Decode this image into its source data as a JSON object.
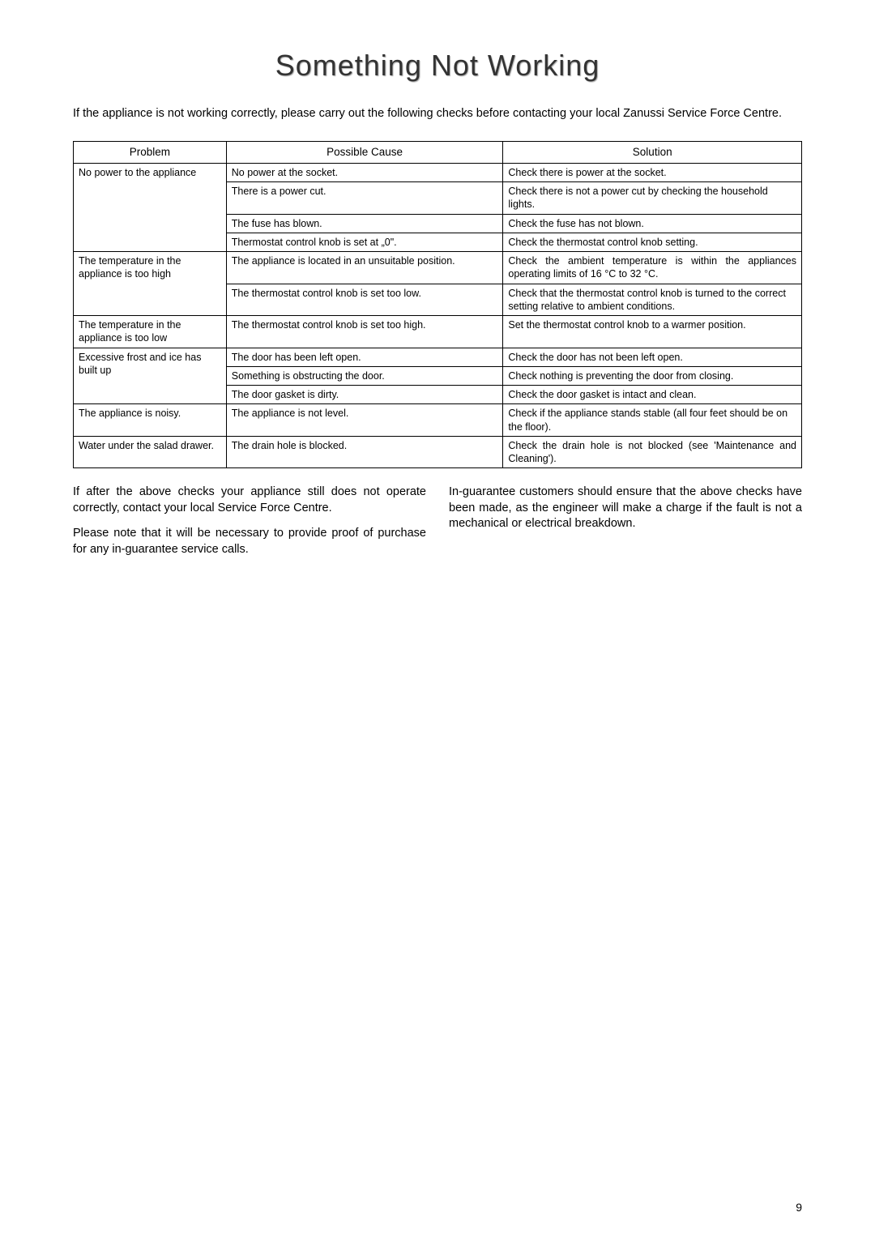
{
  "title": "Something Not Working",
  "intro": "If the appliance is not working correctly, please carry out the following checks before contacting your local Zanussi Service Force Centre.",
  "table": {
    "headers": [
      "Problem",
      "Possible Cause",
      "Solution"
    ],
    "rows": [
      {
        "problem": "No power to the appliance",
        "pairs": [
          {
            "cause": "No power at the socket.",
            "solution": "Check there is power at the socket."
          },
          {
            "cause": "There is a power cut.",
            "solution": "Check there is not a power cut by checking the household lights."
          },
          {
            "cause": "The fuse has blown.",
            "solution": "Check the fuse has not blown."
          },
          {
            "cause": "Thermostat control knob is set at „0\".",
            "solution": "Check the thermostat control knob setting."
          }
        ]
      },
      {
        "problem": "The temperature in the appliance is too high",
        "pairs": [
          {
            "cause": "The appliance is located in an unsuitable position.",
            "solution": "Check the ambient temperature is within the appliances operating limits of 16 °C to 32 °C."
          },
          {
            "cause": "The thermostat control knob is set too low.",
            "solution": "Check that the thermostat control knob is turned to the correct setting relative to ambient conditions."
          }
        ]
      },
      {
        "problem": "The temperature in the appliance is too low",
        "pairs": [
          {
            "cause": "The thermostat control knob is set too high.",
            "solution": "Set the thermostat control knob to a warmer position."
          }
        ]
      },
      {
        "problem": "Excessive frost and ice has built up",
        "pairs": [
          {
            "cause": "The door has been left open.",
            "solution": "Check the door has not been left open."
          },
          {
            "cause": "Something is obstructing the door.",
            "solution": "Check nothing is preventing the door from closing."
          },
          {
            "cause": "The door gasket is dirty.",
            "solution": "Check the door gasket is intact and clean."
          }
        ]
      },
      {
        "problem": "The appliance is noisy.",
        "pairs": [
          {
            "cause": "The appliance is not level.",
            "solution": "Check if the appliance stands stable (all four feet should be on the floor)."
          }
        ]
      },
      {
        "problem": "Water under the salad drawer.",
        "pairs": [
          {
            "cause": "The drain hole is blocked.",
            "solution": "Check the drain hole is not blocked (see 'Maintenance and Cleaning')."
          }
        ]
      }
    ]
  },
  "para_left_1": "If after the above checks your appliance still does not operate correctly, contact your local Service Force Centre.",
  "para_left_2": "Please note that it will be necessary to provide proof of purchase for any in-guarantee service calls.",
  "para_right": "In-guarantee customers should ensure that the above checks have been made, as the engineer will make a charge if the fault is not a mechanical or electrical breakdown.",
  "page_number": "9",
  "colors": {
    "text": "#000000",
    "bg": "#ffffff",
    "border": "#000000"
  }
}
